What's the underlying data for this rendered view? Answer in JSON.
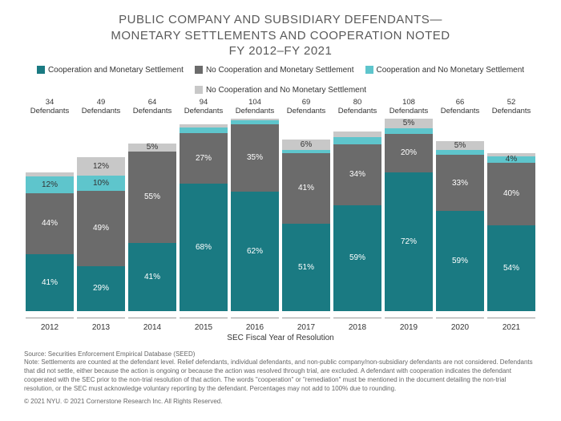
{
  "title_l1": "PUBLIC COMPANY AND SUBSIDIARY DEFENDANTS—",
  "title_l2": "MONETARY SETTLEMENTS AND COOPERATION NOTED",
  "title_l3": "FY 2012–FY 2021",
  "legend": [
    {
      "label": "Cooperation and Monetary Settlement",
      "color": "#1a7a82"
    },
    {
      "label": "No Cooperation and Monetary Settlement",
      "color": "#6b6b6b"
    },
    {
      "label": "Cooperation and No Monetary Settlement",
      "color": "#5ec5cc"
    },
    {
      "label": "No Cooperation and No Monetary Settlement",
      "color": "#c8c8c8"
    }
  ],
  "xaxis_title": "SEC Fiscal Year of Resolution",
  "colors": {
    "s1": "#1a7a82",
    "s2": "#6b6b6b",
    "s3": "#5ec5cc",
    "s4": "#c8c8c8"
  },
  "bars": [
    {
      "year": "2012",
      "def": "34",
      "segs": [
        {
          "v": 41,
          "l": "41%",
          "c": "s1"
        },
        {
          "v": 44,
          "l": "44%",
          "c": "s2"
        },
        {
          "v": 12,
          "l": "12%",
          "c": "s3",
          "light": 1
        },
        {
          "v": 3,
          "l": "",
          "c": "s4"
        }
      ],
      "h": 72
    },
    {
      "year": "2013",
      "def": "49",
      "segs": [
        {
          "v": 29,
          "l": "29%",
          "c": "s1"
        },
        {
          "v": 49,
          "l": "49%",
          "c": "s2"
        },
        {
          "v": 10,
          "l": "10%",
          "c": "s3",
          "light": 1
        },
        {
          "v": 12,
          "l": "12%",
          "c": "s4",
          "light": 1
        }
      ],
      "h": 80
    },
    {
      "year": "2014",
      "def": "64",
      "segs": [
        {
          "v": 41,
          "l": "41%",
          "c": "s1"
        },
        {
          "v": 55,
          "l": "55%",
          "c": "s2"
        },
        {
          "v": 0,
          "l": "",
          "c": "s3"
        },
        {
          "v": 5,
          "l": "5%",
          "c": "s4",
          "light": 1
        }
      ],
      "h": 87
    },
    {
      "year": "2015",
      "def": "94",
      "segs": [
        {
          "v": 68,
          "l": "68%",
          "c": "s1"
        },
        {
          "v": 27,
          "l": "27%",
          "c": "s2"
        },
        {
          "v": 3,
          "l": "",
          "c": "s3"
        },
        {
          "v": 2,
          "l": "",
          "c": "s4"
        }
      ],
      "h": 97
    },
    {
      "year": "2016",
      "def": "104",
      "segs": [
        {
          "v": 62,
          "l": "62%",
          "c": "s1"
        },
        {
          "v": 35,
          "l": "35%",
          "c": "s2"
        },
        {
          "v": 2,
          "l": "",
          "c": "s3"
        },
        {
          "v": 1,
          "l": "",
          "c": "s4"
        }
      ],
      "h": 100
    },
    {
      "year": "2017",
      "def": "69",
      "segs": [
        {
          "v": 51,
          "l": "51%",
          "c": "s1"
        },
        {
          "v": 41,
          "l": "41%",
          "c": "s2"
        },
        {
          "v": 2,
          "l": "",
          "c": "s3"
        },
        {
          "v": 6,
          "l": "6%",
          "c": "s4",
          "light": 1
        }
      ],
      "h": 89
    },
    {
      "year": "2018",
      "def": "80",
      "segs": [
        {
          "v": 59,
          "l": "59%",
          "c": "s1"
        },
        {
          "v": 34,
          "l": "34%",
          "c": "s2"
        },
        {
          "v": 4,
          "l": "",
          "c": "s3"
        },
        {
          "v": 3,
          "l": "",
          "c": "s4"
        }
      ],
      "h": 93
    },
    {
      "year": "2019",
      "def": "108",
      "segs": [
        {
          "v": 72,
          "l": "72%",
          "c": "s1"
        },
        {
          "v": 20,
          "l": "20%",
          "c": "s2"
        },
        {
          "v": 3,
          "l": "",
          "c": "s3"
        },
        {
          "v": 5,
          "l": "5%",
          "c": "s4",
          "light": 1
        }
      ],
      "h": 100
    },
    {
      "year": "2020",
      "def": "66",
      "segs": [
        {
          "v": 59,
          "l": "59%",
          "c": "s1"
        },
        {
          "v": 33,
          "l": "33%",
          "c": "s2"
        },
        {
          "v": 3,
          "l": "",
          "c": "s3"
        },
        {
          "v": 5,
          "l": "5%",
          "c": "s4",
          "light": 1
        }
      ],
      "h": 88
    },
    {
      "year": "2021",
      "def": "52",
      "segs": [
        {
          "v": 54,
          "l": "54%",
          "c": "s1"
        },
        {
          "v": 40,
          "l": "40%",
          "c": "s2"
        },
        {
          "v": 4,
          "l": "4%",
          "c": "s3",
          "light": 1
        },
        {
          "v": 2,
          "l": "",
          "c": "s4"
        }
      ],
      "h": 82
    }
  ],
  "source": "Source: Securities Enforcement Empirical Database (SEED)",
  "note": "Note: Settlements are counted at the defendant level. Relief defendants, individual defendants, and non-public company/non-subsidiary defendants are not considered. Defendants that did not settle, either because the action is ongoing or because the action was resolved through trial, are excluded. A defendant with cooperation indicates the defendant cooperated with the SEC prior to the non-trial resolution of that action. The words \"cooperation\" or \"remediation\" must be mentioned in the document detailing the non-trial resolution, or the SEC must acknowledge voluntary reporting by the defendant. Percentages may not add to 100% due to rounding.",
  "copyright": "© 2021 NYU. © 2021 Cornerstone Research Inc. All Rights Reserved."
}
